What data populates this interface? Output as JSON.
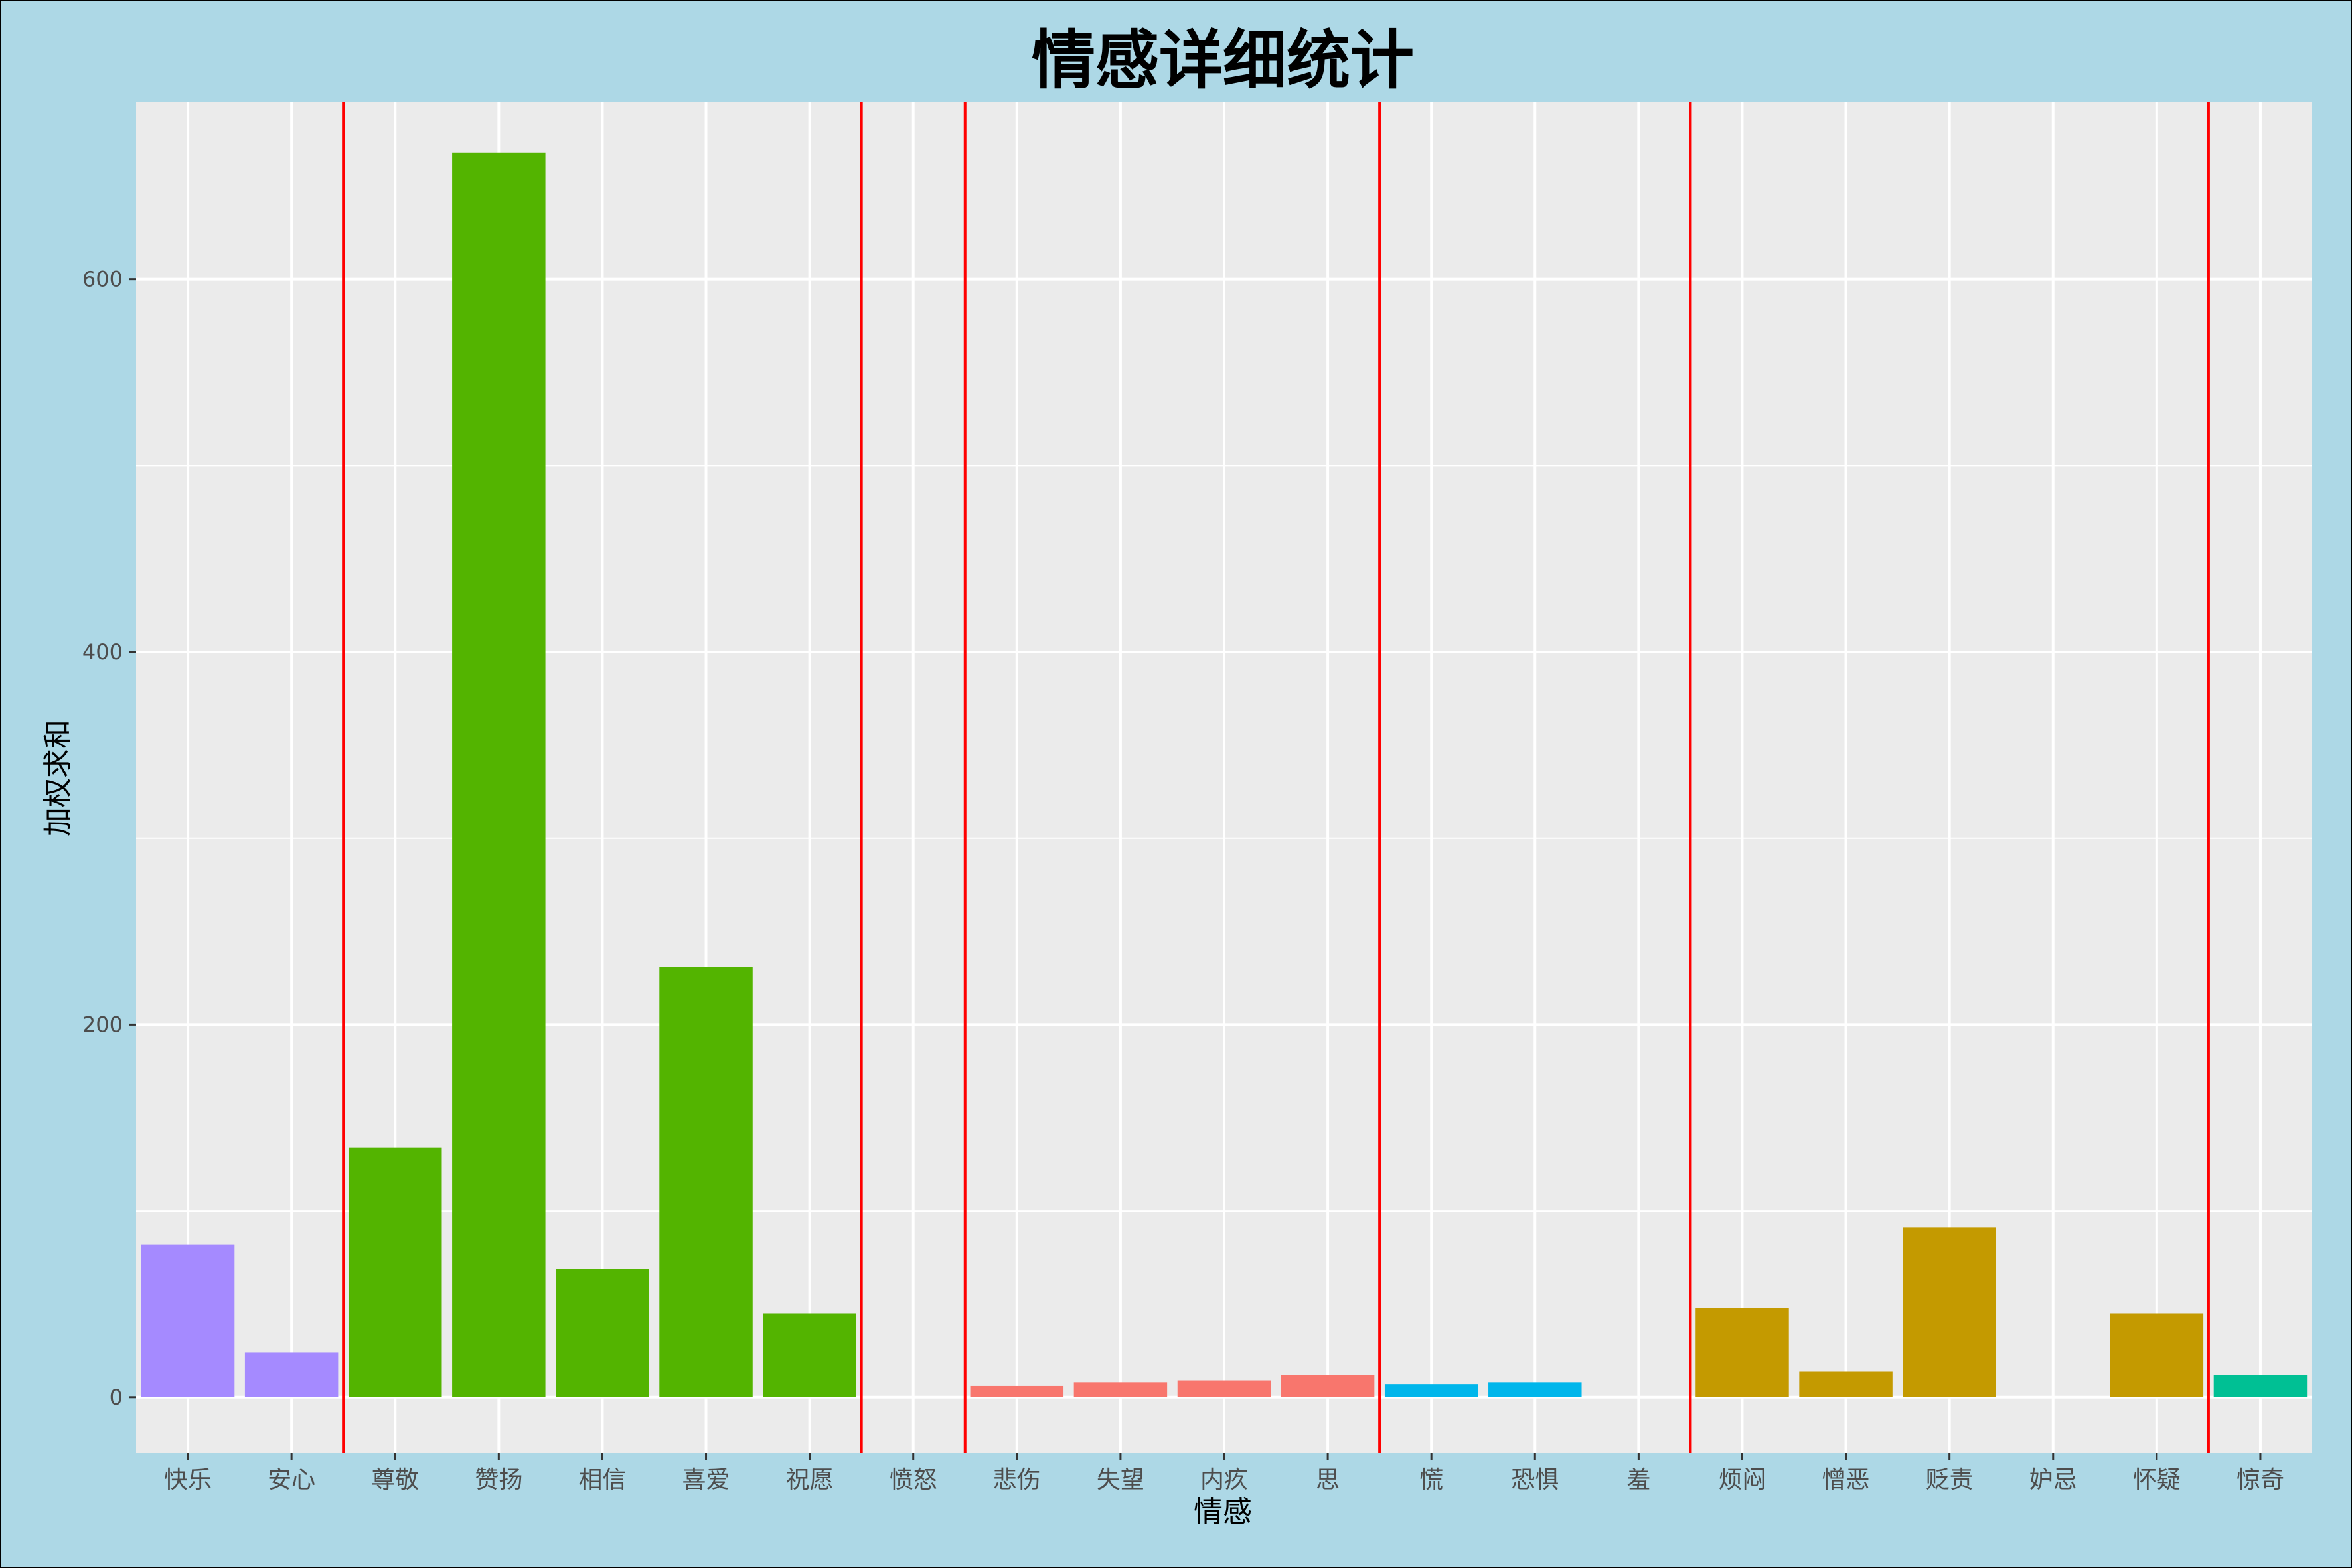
{
  "chart_data": {
    "type": "bar",
    "title": "情感详细统计",
    "xlabel": "情感",
    "ylabel": "加权求和",
    "ylim": [
      -30,
      695
    ],
    "yticks": [
      0,
      200,
      400,
      600
    ],
    "grid": true,
    "legend": "none",
    "categories": [
      "快乐",
      "安心",
      "尊敬",
      "赞扬",
      "相信",
      "喜爱",
      "祝愿",
      "愤怒",
      "悲伤",
      "失望",
      "内疚",
      "思",
      "慌",
      "恐惧",
      "羞",
      "烦闷",
      "憎恶",
      "贬责",
      "妒忌",
      "怀疑",
      "惊奇"
    ],
    "values": [
      82,
      24,
      134,
      668,
      69,
      231,
      45,
      0,
      6,
      8,
      9,
      12,
      7,
      8,
      0,
      48,
      14,
      91,
      0,
      45,
      12
    ],
    "bar_colors": [
      "#a58aff",
      "#a58aff",
      "#53b400",
      "#53b400",
      "#53b400",
      "#53b400",
      "#53b400",
      "#f8766d",
      "#f8766d",
      "#f8766d",
      "#f8766d",
      "#f8766d",
      "#00b6eb",
      "#00b6eb",
      "#00b6eb",
      "#c49a00",
      "#c49a00",
      "#c49a00",
      "#c49a00",
      "#c49a00",
      "#00c094"
    ],
    "group_separators_after_index": [
      1,
      6,
      7,
      11,
      14,
      19
    ],
    "colors": {
      "page_background": "#add8e6",
      "panel_background": "#ebebeb",
      "grid": "#ffffff",
      "separator_line": "#ff0000",
      "tick_label": "#4d4d4d"
    }
  }
}
